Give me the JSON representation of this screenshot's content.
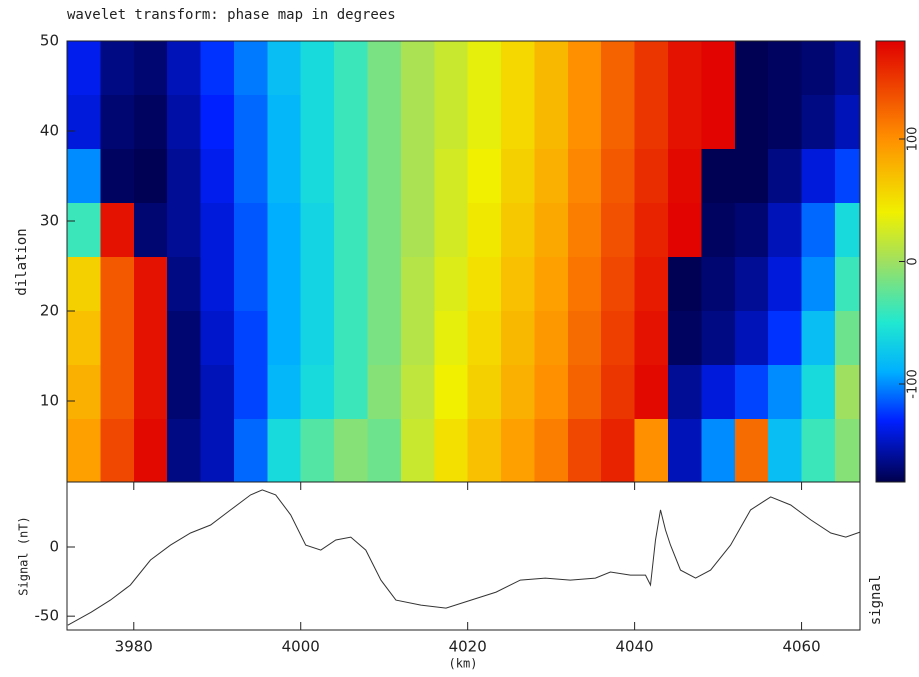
{
  "chart_data": [
    {
      "type": "heatmap",
      "title": "wavelet transform: phase map in degrees",
      "ylabel": "dilation",
      "xlim": [
        3972,
        4067
      ],
      "ylim": [
        1,
        50
      ],
      "yticks": [
        10,
        20,
        30,
        40,
        50
      ],
      "x": [
        3974,
        3978,
        3982,
        3986,
        3990,
        3994,
        3998,
        4002,
        4006,
        4010,
        4014,
        4018,
        4022,
        4026,
        4030,
        4034,
        4038,
        4042,
        4046,
        4050,
        4054,
        4058,
        4062,
        4066
      ],
      "y": [
        47,
        41,
        35,
        29,
        23,
        17,
        11,
        5
      ],
      "z": [
        [
          -135,
          -165,
          -170,
          -150,
          -125,
          -105,
          -80,
          -60,
          -40,
          -15,
          5,
          20,
          35,
          55,
          75,
          100,
          125,
          150,
          170,
          178,
          -178,
          -175,
          -170,
          -160
        ],
        [
          -140,
          -170,
          -175,
          -155,
          -130,
          -110,
          -85,
          -60,
          -40,
          -15,
          5,
          20,
          35,
          55,
          75,
          100,
          125,
          150,
          170,
          178,
          -178,
          -175,
          -165,
          -150
        ],
        [
          -100,
          -175,
          -178,
          -160,
          -135,
          -110,
          -85,
          -60,
          -40,
          -15,
          5,
          25,
          40,
          60,
          80,
          105,
          130,
          155,
          175,
          -178,
          -178,
          -165,
          -140,
          -120
        ],
        [
          -40,
          170,
          -170,
          -160,
          -140,
          -115,
          -90,
          -65,
          -40,
          -15,
          5,
          25,
          45,
          65,
          85,
          110,
          135,
          160,
          178,
          -175,
          -170,
          -150,
          -110,
          -60
        ],
        [
          60,
          130,
          170,
          -165,
          -140,
          -115,
          -90,
          -65,
          -40,
          -15,
          10,
          30,
          50,
          70,
          90,
          115,
          140,
          165,
          -178,
          -170,
          -160,
          -140,
          -100,
          -40
        ],
        [
          70,
          130,
          170,
          -170,
          -145,
          -120,
          -90,
          -65,
          -40,
          -15,
          10,
          35,
          55,
          75,
          95,
          120,
          145,
          170,
          -175,
          -165,
          -150,
          -125,
          -80,
          -20
        ],
        [
          80,
          130,
          170,
          -170,
          -150,
          -120,
          -85,
          -60,
          -40,
          -10,
          15,
          40,
          60,
          80,
          100,
          125,
          150,
          175,
          -160,
          -140,
          -120,
          -100,
          -60,
          0
        ],
        [
          90,
          140,
          175,
          -165,
          -150,
          -110,
          -60,
          -30,
          -10,
          -20,
          20,
          50,
          70,
          90,
          110,
          140,
          160,
          100,
          -150,
          -100,
          120,
          -80,
          -40,
          -10
        ]
      ],
      "colorbar": {
        "lim": [
          -180,
          180
        ],
        "ticks": [
          -100,
          0,
          100
        ],
        "colormap": [
          {
            "value": -180,
            "color": "#00004d"
          },
          {
            "value": -130,
            "color": "#0020ff"
          },
          {
            "value": -90,
            "color": "#00b0ff"
          },
          {
            "value": -50,
            "color": "#20e8d0"
          },
          {
            "value": 0,
            "color": "#a0e060"
          },
          {
            "value": 40,
            "color": "#f0f000"
          },
          {
            "value": 100,
            "color": "#ff9000"
          },
          {
            "value": 180,
            "color": "#e00000"
          }
        ]
      }
    },
    {
      "type": "line",
      "ylabel": "Signal (nT)",
      "right_label": "signal",
      "xlabel": "(km)",
      "color": "#333333",
      "xlim": [
        3972,
        4067
      ],
      "ylim": [
        -60,
        47
      ],
      "xticks": [
        3980,
        4000,
        4020,
        4040,
        4060
      ],
      "yticks": [
        -50,
        0
      ],
      "x": [
        3972.1,
        3974.9,
        3977.2,
        3979.6,
        3982.0,
        3984.4,
        3986.8,
        3989.2,
        3991.6,
        3994.0,
        3995.4,
        3997.0,
        3998.8,
        4000.6,
        4002.4,
        4004.2,
        4006.0,
        4007.8,
        4009.6,
        4011.4,
        4014.4,
        4017.4,
        4020.4,
        4023.4,
        4026.3,
        4029.3,
        4032.3,
        4035.3,
        4037.1,
        4039.5,
        4041.3,
        4041.9,
        4042.5,
        4043.1,
        4043.7,
        4044.3,
        4045.5,
        4047.3,
        4049.1,
        4051.5,
        4053.9,
        4056.3,
        4058.7,
        4061.1,
        4063.5,
        4065.3,
        4067.0
      ],
      "values": [
        -56.5,
        -47.1,
        -38.4,
        -27.5,
        -9.4,
        1.4,
        10.1,
        15.9,
        26.8,
        37.7,
        41.3,
        37.7,
        23.2,
        1.4,
        -2.2,
        5.1,
        7.2,
        -2.2,
        -23.9,
        -38.4,
        -42.0,
        -44.2,
        -38.4,
        -32.6,
        -23.9,
        -22.5,
        -23.9,
        -22.5,
        -18.1,
        -20.3,
        -20.3,
        -27.5,
        5.1,
        26.8,
        12.3,
        1.4,
        -16.7,
        -22.5,
        -16.7,
        1.4,
        26.8,
        36.2,
        30.4,
        19.6,
        10.1,
        7.2,
        10.8
      ]
    }
  ]
}
